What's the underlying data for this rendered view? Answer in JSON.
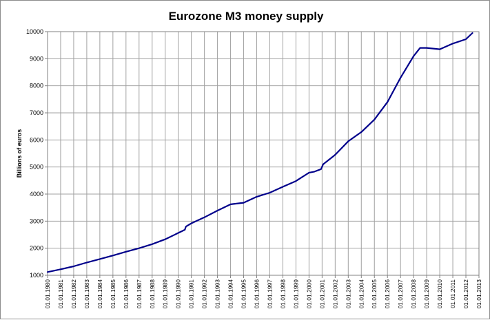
{
  "chart_data": {
    "type": "line",
    "title": "Eurozone M3 money supply",
    "xlabel": "",
    "ylabel": "Billions of euros",
    "xlim": [
      "01.01.1980",
      "01.01.2013"
    ],
    "ylim": [
      1000,
      10000
    ],
    "y_ticks": [
      1000,
      2000,
      3000,
      4000,
      5000,
      6000,
      7000,
      8000,
      9000,
      10000
    ],
    "x_tick_labels": [
      "01.01.1980",
      "01.01.1981",
      "01.01.1982",
      "01.01.1983",
      "01.01.1984",
      "01.01.1985",
      "01.01.1986",
      "01.01.1987",
      "01.01.1988",
      "01.01.1989",
      "01.01.1990",
      "01.01.1991",
      "01.01.1992",
      "01.01.1993",
      "01.01.1994",
      "01.01.1995",
      "01.01.1996",
      "01.01.1997",
      "01.01.1998",
      "01.01.1999",
      "01.01.2000",
      "01.01.2001",
      "01.01.2002",
      "01.01.2003",
      "01.01.2004",
      "01.01.2005",
      "01.01.2006",
      "01.01.2007",
      "01.01.2008",
      "01.01.2009",
      "01.01.2010",
      "01.01.2011",
      "01.01.2012",
      "01.01.2013"
    ],
    "grid": true,
    "legend": "none",
    "line_color": "#00008b",
    "series": [
      {
        "x": [
          "01.01.1980",
          "01.01.1981",
          "01.01.1982",
          "01.01.1983",
          "01.01.1984",
          "01.01.1985",
          "01.01.1986",
          "01.01.1987",
          "01.01.1988",
          "01.01.1989",
          "01.07.1990",
          "01.08.1990",
          "01.01.1991",
          "01.01.1992",
          "01.01.1993",
          "01.01.1994",
          "01.01.1995",
          "01.01.1996",
          "01.01.1997",
          "01.01.1998",
          "01.01.1999",
          "01.01.2000",
          "01.06.2000",
          "01.12.2000",
          "01.02.2001",
          "01.01.2002",
          "01.01.2003",
          "01.01.2004",
          "01.01.2005",
          "01.01.2006",
          "01.01.2007",
          "01.01.2008",
          "01.07.2008",
          "01.01.2009",
          "01.01.2010",
          "01.01.2011",
          "01.01.2012",
          "01.07.2012"
        ],
        "values": [
          1120,
          1220,
          1330,
          1470,
          1600,
          1730,
          1870,
          2000,
          2150,
          2330,
          2680,
          2800,
          2920,
          3140,
          3390,
          3620,
          3680,
          3900,
          4050,
          4270,
          4480,
          4790,
          4830,
          4920,
          5100,
          5450,
          5950,
          6290,
          6750,
          7400,
          8300,
          9100,
          9400,
          9400,
          9350,
          9560,
          9720,
          9950
        ]
      }
    ]
  }
}
